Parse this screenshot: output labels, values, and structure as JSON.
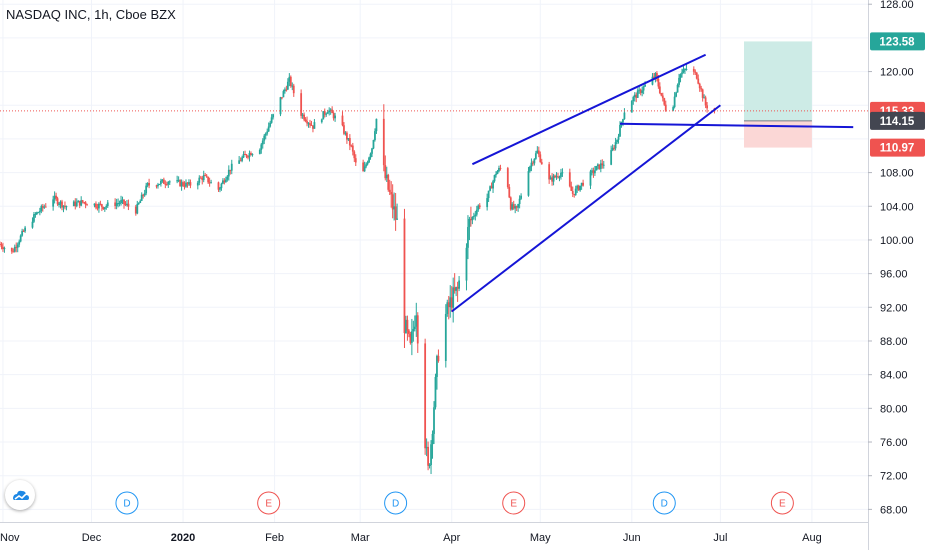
{
  "header": {
    "title": "NASDAQ INC, 1h, Cboe BZX"
  },
  "colors": {
    "up": "#26a69a",
    "down": "#ef5350",
    "trendline": "#1515d6",
    "grid": "#f0f3fa",
    "target_zone": "#cdebe6",
    "stop_zone": "#fbd7d6",
    "price_line": "#ef5350",
    "dividend_event": "#2196f3",
    "earnings_event": "#ef5350"
  },
  "chart_data": {
    "type": "candlestick",
    "symbol": "NASDAQ INC",
    "interval": "1h",
    "exchange": "Cboe BZX",
    "ylim": [
      66.5,
      128.5
    ],
    "y_ticks": [
      68,
      72,
      76,
      80,
      84,
      88,
      92,
      96,
      100,
      104,
      108,
      112,
      116,
      120,
      124,
      128
    ],
    "y_tick_labels": [
      "68.00",
      "72.00",
      "76.00",
      "80.00",
      "84.00",
      "88.00",
      "92.00",
      "96.00",
      "100.00",
      "104.00",
      "108.00",
      "",
      "",
      "120.00",
      "",
      "128.00"
    ],
    "x_start": "2019-10-31",
    "x_end": "2020-08-20",
    "x_ticks": [
      {
        "date": "2019-11-01",
        "label": "Nov"
      },
      {
        "date": "2019-12-01",
        "label": "Dec"
      },
      {
        "date": "2020-01-01",
        "label": "2020"
      },
      {
        "date": "2020-02-01",
        "label": "Feb"
      },
      {
        "date": "2020-03-01",
        "label": "Mar"
      },
      {
        "date": "2020-04-01",
        "label": "Apr"
      },
      {
        "date": "2020-05-01",
        "label": "May"
      },
      {
        "date": "2020-06-01",
        "label": "Jun"
      },
      {
        "date": "2020-07-01",
        "label": "Jul"
      },
      {
        "date": "2020-08-01",
        "label": "Aug"
      }
    ],
    "price_path": [
      [
        "2019-10-31",
        99.5
      ],
      [
        "2019-11-04",
        98.5
      ],
      [
        "2019-11-08",
        101
      ],
      [
        "2019-11-12",
        103
      ],
      [
        "2019-11-18",
        105
      ],
      [
        "2019-11-22",
        104
      ],
      [
        "2019-11-28",
        104.5
      ],
      [
        "2019-12-05",
        104
      ],
      [
        "2019-12-11",
        104.5
      ],
      [
        "2019-12-16",
        103.5
      ],
      [
        "2019-12-20",
        106.5
      ],
      [
        "2019-12-27",
        107
      ],
      [
        "2020-01-03",
        106.5
      ],
      [
        "2020-01-08",
        107.5
      ],
      [
        "2020-01-13",
        106
      ],
      [
        "2020-01-17",
        108.5
      ],
      [
        "2020-01-22",
        110
      ],
      [
        "2020-01-27",
        111
      ],
      [
        "2020-02-02",
        116
      ],
      [
        "2020-02-06",
        119
      ],
      [
        "2020-02-10",
        115
      ],
      [
        "2020-02-14",
        113.5
      ],
      [
        "2020-02-19",
        115.5
      ],
      [
        "2020-02-23",
        114
      ],
      [
        "2020-02-27",
        111
      ],
      [
        "2020-03-01",
        107
      ],
      [
        "2020-03-05",
        111
      ],
      [
        "2020-03-07",
        115.5
      ],
      [
        "2020-03-09",
        108
      ],
      [
        "2020-03-12",
        104
      ],
      [
        "2020-03-15",
        100
      ],
      [
        "2020-03-16",
        90
      ],
      [
        "2020-03-18",
        87
      ],
      [
        "2020-03-20",
        92
      ],
      [
        "2020-03-22",
        80
      ],
      [
        "2020-03-24",
        72.5
      ],
      [
        "2020-03-25",
        76
      ],
      [
        "2020-03-27",
        85
      ],
      [
        "2020-03-29",
        92
      ],
      [
        "2020-03-30",
        91
      ],
      [
        "2020-04-01",
        93
      ],
      [
        "2020-04-03",
        94
      ],
      [
        "2020-04-05",
        98
      ],
      [
        "2020-04-07",
        102
      ],
      [
        "2020-04-10",
        104
      ],
      [
        "2020-04-13",
        105
      ],
      [
        "2020-04-16",
        108
      ],
      [
        "2020-04-19",
        109
      ],
      [
        "2020-04-21",
        104
      ],
      [
        "2020-04-23",
        103.5
      ],
      [
        "2020-04-27",
        108.5
      ],
      [
        "2020-04-30",
        110.5
      ],
      [
        "2020-05-04",
        107
      ],
      [
        "2020-05-08",
        108
      ],
      [
        "2020-05-12",
        105.5
      ],
      [
        "2020-05-16",
        107
      ],
      [
        "2020-05-20",
        108.5
      ],
      [
        "2020-05-24",
        109.5
      ],
      [
        "2020-05-27",
        112
      ],
      [
        "2020-05-30",
        116
      ],
      [
        "2020-06-02",
        117
      ],
      [
        "2020-06-06",
        118.5
      ],
      [
        "2020-06-09",
        119.5
      ],
      [
        "2020-06-12",
        116
      ],
      [
        "2020-06-14",
        114.5
      ],
      [
        "2020-06-17",
        119.5
      ],
      [
        "2020-06-20",
        120.5
      ],
      [
        "2020-06-23",
        119.5
      ],
      [
        "2020-06-26",
        116
      ],
      [
        "2020-06-29",
        115.3
      ]
    ],
    "trendlines": [
      {
        "name": "upper-channel",
        "points": [
          [
            "2020-04-08",
            109
          ],
          [
            "2020-06-26",
            122
          ]
        ]
      },
      {
        "name": "lower-channel",
        "points": [
          [
            "2020-04-01",
            91.5
          ],
          [
            "2020-07-01",
            116
          ]
        ]
      },
      {
        "name": "support",
        "points": [
          [
            "2020-05-28",
            113.8
          ],
          [
            "2020-08-15",
            113.4
          ]
        ]
      }
    ],
    "long_position": {
      "start": "2020-07-09",
      "end": "2020-08-01",
      "entry": 114.15,
      "target": 123.58,
      "stop": 110.97
    },
    "last_price": 115.33,
    "price_badges": [
      {
        "name": "target-price-badge",
        "value": "123.58",
        "price": 123.58,
        "color": "#26a69a"
      },
      {
        "name": "last-price-badge",
        "value": "115.33",
        "price": 115.33,
        "color": "#ef5350"
      },
      {
        "name": "entry-price-badge",
        "value": "114.15",
        "price": 114.15,
        "color": "#434651"
      },
      {
        "name": "stop-price-badge",
        "value": "110.97",
        "price": 110.97,
        "color": "#ef5350"
      }
    ],
    "events": [
      {
        "type": "D",
        "date": "2019-12-13"
      },
      {
        "type": "E",
        "date": "2020-01-30"
      },
      {
        "type": "D",
        "date": "2020-03-13"
      },
      {
        "type": "E",
        "date": "2020-04-22"
      },
      {
        "type": "D",
        "date": "2020-06-12"
      },
      {
        "type": "E",
        "date": "2020-07-22"
      }
    ]
  }
}
